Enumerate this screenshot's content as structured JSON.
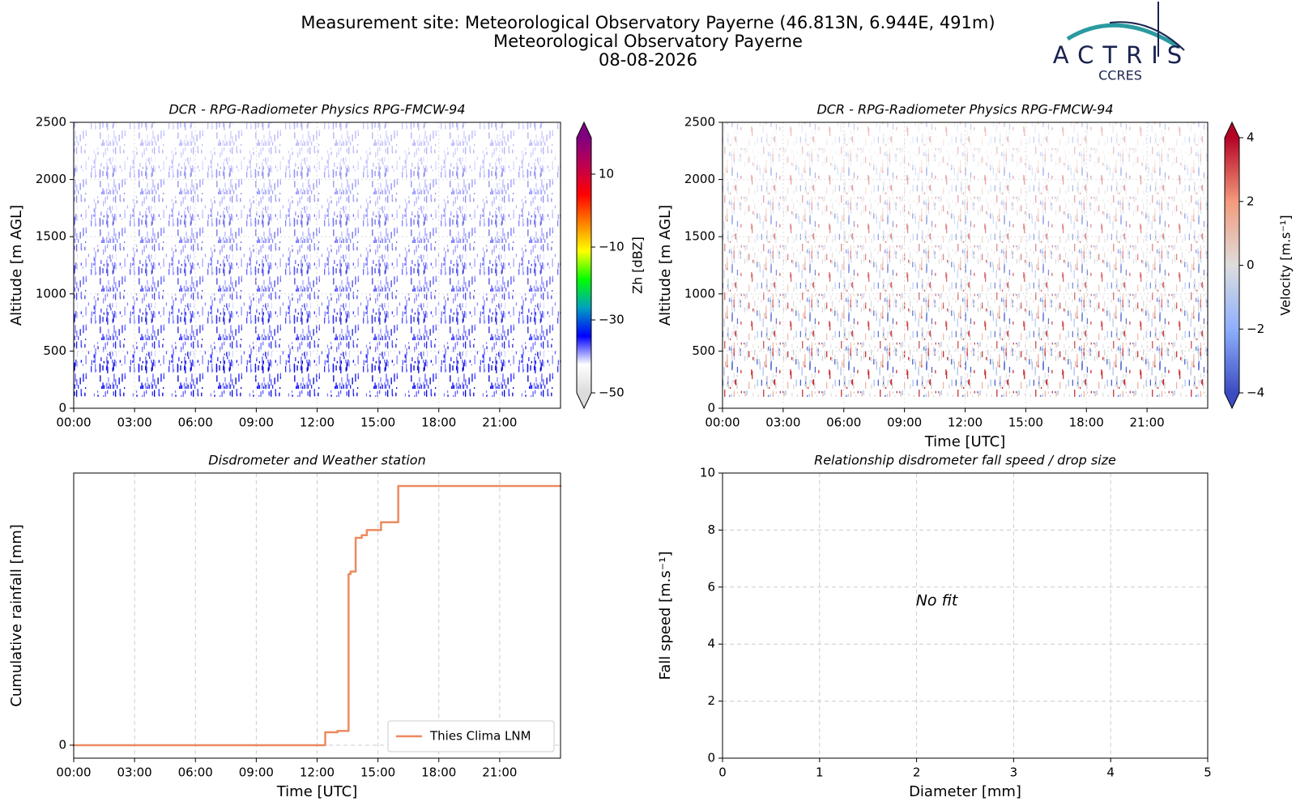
{
  "header": {
    "title": "Measurement site: Meteorological Observatory Payerne (46.813N, 6.944E, 491m)",
    "subtitle": "Meteorological Observatory Payerne",
    "date": "08-08-2026"
  },
  "logo": {
    "name": "ACTRIS",
    "sub": "CCRES"
  },
  "chart_data": [
    {
      "type": "heatmap",
      "title": "DCR - RPG-Radiometer Physics RPG-FMCW-94",
      "ylabel": "Altitude [m AGL]",
      "xlim": [
        0,
        24
      ],
      "xticks": [
        {
          "value": 0,
          "label": "00:00"
        },
        {
          "value": 3,
          "label": "03:00"
        },
        {
          "value": 6,
          "label": "06:00"
        },
        {
          "value": 9,
          "label": "09:00"
        },
        {
          "value": 12,
          "label": "12:00"
        },
        {
          "value": 15,
          "label": "15:00"
        },
        {
          "value": 18,
          "label": "18:00"
        },
        {
          "value": 21,
          "label": "21:00"
        }
      ],
      "ylim": [
        0,
        2500
      ],
      "yticks": [
        0,
        500,
        1000,
        1500,
        2000,
        2500
      ],
      "grid": true,
      "colorbar": {
        "label": "Zh [dBZ]",
        "lim": [
          -50,
          20
        ],
        "ticks": [
          10,
          {
            "value": -10,
            "label": "−10"
          },
          {
            "value": -30,
            "label": "−30"
          },
          {
            "value": -50,
            "label": "−50"
          }
        ],
        "colors": [
          "#dcdcdc",
          "#ffffff",
          "#0000ff",
          "#00a0c0",
          "#00ff00",
          "#ffff00",
          "#ff7f00",
          "#ff0000",
          "#c00050",
          "#800080"
        ]
      }
    },
    {
      "type": "heatmap",
      "title": "DCR - RPG-Radiometer Physics RPG-FMCW-94",
      "ylabel": "Altitude [m AGL]",
      "xlabel": "Time [UTC]",
      "xlim": [
        0,
        24
      ],
      "xticks": [
        {
          "value": 0,
          "label": "00:00"
        },
        {
          "value": 3,
          "label": "03:00"
        },
        {
          "value": 6,
          "label": "06:00"
        },
        {
          "value": 9,
          "label": "09:00"
        },
        {
          "value": 12,
          "label": "12:00"
        },
        {
          "value": 15,
          "label": "15:00"
        },
        {
          "value": 18,
          "label": "18:00"
        },
        {
          "value": 21,
          "label": "21:00"
        }
      ],
      "ylim": [
        0,
        2500
      ],
      "yticks": [
        0,
        500,
        1000,
        1500,
        2000,
        2500
      ],
      "grid": true,
      "colorbar": {
        "label": "Velocity [m.s⁻¹]",
        "lim": [
          -4,
          4
        ],
        "ticks": [
          4,
          2,
          0,
          {
            "value": -2,
            "label": "−2"
          },
          {
            "value": -4,
            "label": "−4"
          }
        ],
        "colors": [
          "#3b4cc0",
          "#8db0fe",
          "#dddddd",
          "#f49a7b",
          "#b40426"
        ]
      }
    },
    {
      "type": "line",
      "title": "Disdrometer and Weather station",
      "xlabel": "Time [UTC]",
      "ylabel": "Cumulative rainfall [mm]",
      "xlim": [
        0,
        24
      ],
      "xticks": [
        {
          "value": 0,
          "label": "00:00"
        },
        {
          "value": 3,
          "label": "03:00"
        },
        {
          "value": 6,
          "label": "06:00"
        },
        {
          "value": 9,
          "label": "09:00"
        },
        {
          "value": 12,
          "label": "12:00"
        },
        {
          "value": 15,
          "label": "15:00"
        },
        {
          "value": 18,
          "label": "18:00"
        },
        {
          "value": 21,
          "label": "21:00"
        }
      ],
      "ylim": [
        -0.05,
        1.05
      ],
      "yticks": [
        0
      ],
      "grid": true,
      "step": "post",
      "legend": "lower right",
      "series": [
        {
          "name": "Thies Clima LNM",
          "color": "#ec8a60",
          "x": [
            0,
            12.4,
            13.0,
            13.55,
            13.65,
            13.9,
            14.2,
            14.45,
            15.15,
            16.0
          ],
          "values": [
            0,
            0.05,
            0.055,
            0.66,
            0.67,
            0.8,
            0.81,
            0.83,
            0.86,
            1.0
          ]
        }
      ]
    },
    {
      "type": "scatter",
      "title": "Relationship disdrometer fall speed / drop size",
      "xlabel": "Diameter [mm]",
      "ylabel": "Fall speed [m.s⁻¹]",
      "xlim": [
        0,
        5
      ],
      "xticks": [
        0,
        1,
        2,
        3,
        4,
        5
      ],
      "ylim": [
        0,
        10
      ],
      "yticks": [
        0,
        2,
        4,
        6,
        8,
        10
      ],
      "grid": true,
      "annotation": "No fit",
      "series": []
    }
  ]
}
